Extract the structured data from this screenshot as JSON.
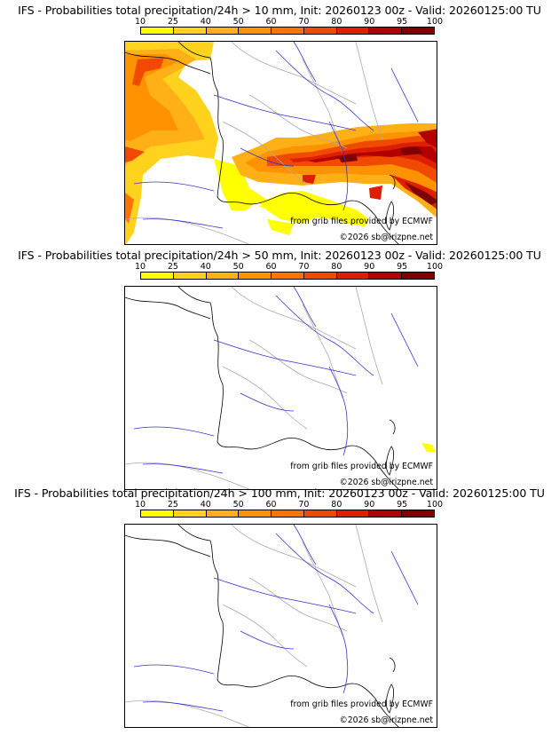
{
  "scale": {
    "ticks": [
      "10",
      "25",
      "40",
      "50",
      "60",
      "70",
      "80",
      "90",
      "95",
      "100"
    ],
    "colors": [
      "#ffff00",
      "#ffd21e",
      "#ffb016",
      "#ff9200",
      "#ff7400",
      "#ef4a00",
      "#dd1f00",
      "#b20000",
      "#7e0000"
    ]
  },
  "panels": [
    {
      "title": "IFS - Probabilities total precipitation/24h > 10 mm, Init: 20260123 00z - Valid: 20260125:00 TU",
      "source": "from grib files provided by ECMWF",
      "copyright": "©2026 sb@irizpne.net"
    },
    {
      "title": "IFS - Probabilities total precipitation/24h > 50 mm, Init: 20260123 00z - Valid: 20260125:00 TU",
      "source": "from grib files provided by ECMWF",
      "copyright": "©2026 sb@irizpne.net"
    },
    {
      "title": "IFS - Probabilities total precipitation/24h > 100 mm, Init: 20260123 00z - Valid: 20260125:00 TU",
      "source": "from grib files provided by ECMWF",
      "copyright": "©2026 sb@irizpne.net"
    }
  ]
}
